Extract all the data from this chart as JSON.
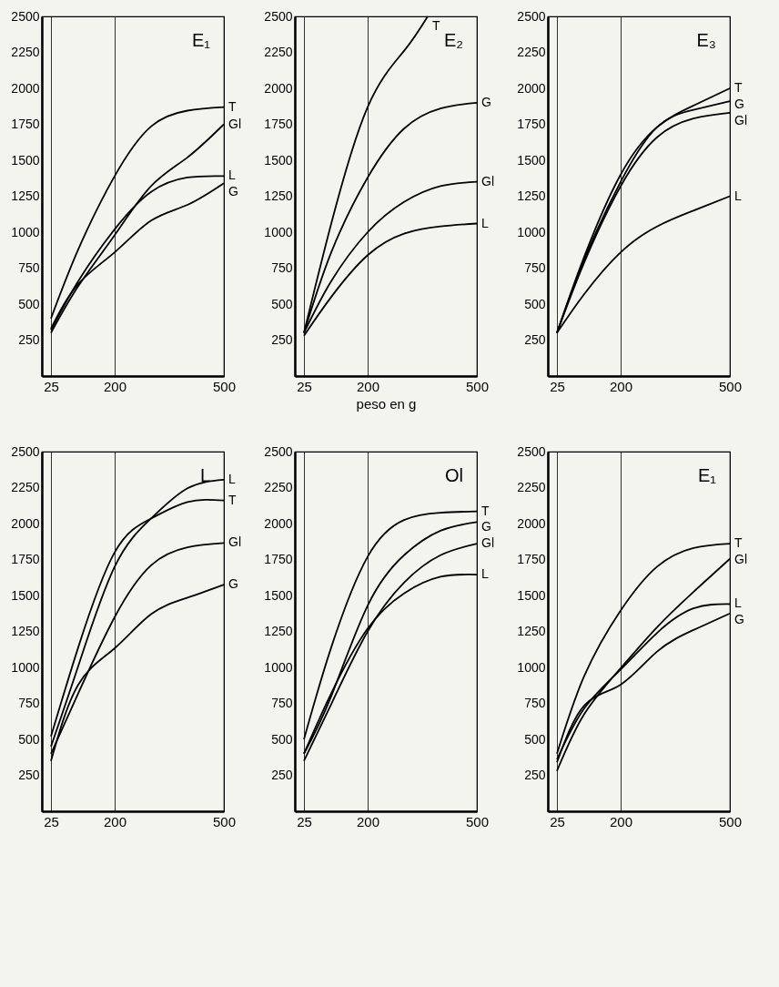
{
  "chart_data": [
    {
      "type": "line",
      "title": "E₁",
      "xlim": [
        0,
        500
      ],
      "xticks": [
        25,
        200,
        500
      ],
      "ylim": [
        0,
        2500
      ],
      "yticks": [
        250,
        500,
        750,
        1000,
        1250,
        1500,
        1750,
        2000,
        2250,
        2500
      ],
      "grid": "x",
      "x": [
        25,
        100,
        200,
        300,
        400,
        500
      ],
      "series": [
        {
          "name": "T",
          "color": "#000000",
          "values": [
            400,
            880,
            1390,
            1735,
            1845,
            1870
          ]
        },
        {
          "name": "Gl",
          "color": "#000000",
          "values": [
            300,
            625,
            980,
            1320,
            1520,
            1750
          ]
        },
        {
          "name": "L",
          "color": "#000000",
          "values": [
            320,
            660,
            1020,
            1280,
            1380,
            1390
          ]
        },
        {
          "name": "G",
          "color": "#000000",
          "values": [
            330,
            640,
            860,
            1080,
            1190,
            1340
          ]
        }
      ]
    },
    {
      "type": "line",
      "title": "E₂",
      "xlabel": "peso en g",
      "xlim": [
        0,
        500
      ],
      "xticks": [
        25,
        200,
        500
      ],
      "ylim": [
        0,
        2500
      ],
      "yticks": [
        250,
        500,
        750,
        1000,
        1250,
        1500,
        1750,
        2000,
        2250,
        2500
      ],
      "grid": "x",
      "x": [
        25,
        100,
        200,
        300,
        400,
        500
      ],
      "series": [
        {
          "name": "T",
          "color": "#000000",
          "x": [
            25,
            100,
            200,
            300,
            365
          ],
          "values": [
            300,
            1060,
            1870,
            2260,
            2500
          ]
        },
        {
          "name": "G",
          "color": "#000000",
          "values": [
            300,
            860,
            1380,
            1720,
            1860,
            1900
          ]
        },
        {
          "name": "Gl",
          "color": "#000000",
          "values": [
            300,
            660,
            1000,
            1210,
            1320,
            1350
          ]
        },
        {
          "name": "L",
          "color": "#000000",
          "values": [
            280,
            550,
            840,
            990,
            1040,
            1060
          ]
        }
      ]
    },
    {
      "type": "line",
      "title": "E₃",
      "xlim": [
        0,
        500
      ],
      "xticks": [
        25,
        200,
        500
      ],
      "ylim": [
        0,
        2500
      ],
      "yticks": [
        250,
        500,
        750,
        1000,
        1250,
        1500,
        1750,
        2000,
        2250,
        2500
      ],
      "grid": "x",
      "x": [
        25,
        100,
        200,
        300,
        400,
        500
      ],
      "series": [
        {
          "name": "T",
          "color": "#000000",
          "values": [
            300,
            830,
            1400,
            1730,
            1880,
            2000
          ]
        },
        {
          "name": "G",
          "color": "#000000",
          "values": [
            300,
            810,
            1350,
            1730,
            1850,
            1910
          ]
        },
        {
          "name": "Gl",
          "color": "#000000",
          "values": [
            300,
            790,
            1320,
            1660,
            1790,
            1830
          ]
        },
        {
          "name": "L",
          "color": "#000000",
          "values": [
            300,
            570,
            860,
            1040,
            1150,
            1250
          ]
        }
      ]
    },
    {
      "type": "line",
      "title": "L",
      "xlim": [
        0,
        500
      ],
      "xticks": [
        25,
        200,
        500
      ],
      "ylim": [
        0,
        2500
      ],
      "yticks": [
        250,
        500,
        750,
        1000,
        1250,
        1500,
        1750,
        2000,
        2250,
        2500
      ],
      "grid": "x",
      "x": [
        25,
        100,
        200,
        300,
        400,
        500
      ],
      "series": [
        {
          "name": "L",
          "color": "#000000",
          "values": [
            450,
            1010,
            1700,
            2035,
            2245,
            2305
          ]
        },
        {
          "name": "T",
          "color": "#000000",
          "values": [
            520,
            1140,
            1800,
            2035,
            2150,
            2160
          ]
        },
        {
          "name": "Gl",
          "color": "#000000",
          "values": [
            400,
            820,
            1350,
            1710,
            1835,
            1865
          ]
        },
        {
          "name": "G",
          "color": "#000000",
          "values": [
            350,
            880,
            1133,
            1370,
            1485,
            1575
          ]
        }
      ]
    },
    {
      "type": "line",
      "title": "Ol",
      "xlim": [
        0,
        500
      ],
      "xticks": [
        25,
        200,
        500
      ],
      "ylim": [
        0,
        2500
      ],
      "yticks": [
        250,
        500,
        750,
        1000,
        1250,
        1500,
        1750,
        2000,
        2250,
        2500
      ],
      "grid": "x",
      "x": [
        25,
        100,
        200,
        300,
        400,
        500
      ],
      "series": [
        {
          "name": "T",
          "color": "#000000",
          "values": [
            500,
            1140,
            1770,
            2025,
            2075,
            2085
          ]
        },
        {
          "name": "G",
          "color": "#000000",
          "values": [
            400,
            800,
            1430,
            1780,
            1950,
            2010
          ]
        },
        {
          "name": "Gl",
          "color": "#000000",
          "values": [
            350,
            745,
            1250,
            1590,
            1780,
            1860
          ]
        },
        {
          "name": "L",
          "color": "#000000",
          "values": [
            400,
            820,
            1270,
            1515,
            1630,
            1645
          ]
        }
      ]
    },
    {
      "type": "line",
      "title": "E₁",
      "xlim": [
        0,
        500
      ],
      "xticks": [
        25,
        200,
        500
      ],
      "ylim": [
        0,
        2500
      ],
      "yticks": [
        250,
        500,
        750,
        1000,
        1250,
        1500,
        1750,
        2000,
        2250,
        2500
      ],
      "grid": "x",
      "x": [
        25,
        100,
        200,
        300,
        400,
        500
      ],
      "series": [
        {
          "name": "T",
          "color": "#000000",
          "values": [
            400,
            940,
            1395,
            1700,
            1830,
            1860
          ]
        },
        {
          "name": "Gl",
          "color": "#000000",
          "values": [
            280,
            675,
            995,
            1280,
            1525,
            1755
          ]
        },
        {
          "name": "L",
          "color": "#000000",
          "values": [
            360,
            715,
            985,
            1240,
            1410,
            1440
          ]
        },
        {
          "name": "G",
          "color": "#000000",
          "values": [
            340,
            735,
            880,
            1110,
            1260,
            1375
          ]
        }
      ]
    }
  ]
}
